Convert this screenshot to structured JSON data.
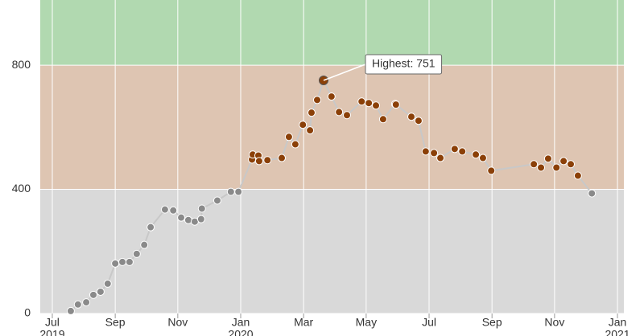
{
  "chart_data": {
    "type": "line",
    "xlim": [
      2019.468,
      2021.017
    ],
    "ylim": [
      0,
      1010
    ],
    "yticks": [
      0,
      400,
      800
    ],
    "xticks": [
      {
        "value": 2019.5,
        "label": "Jul",
        "year": "2019"
      },
      {
        "value": 2019.667,
        "label": "Sep"
      },
      {
        "value": 2019.833,
        "label": "Nov"
      },
      {
        "value": 2020,
        "label": "Jan",
        "year": "2020"
      },
      {
        "value": 2020.167,
        "label": "Mar"
      },
      {
        "value": 2020.333,
        "label": "May"
      },
      {
        "value": 2020.5,
        "label": "Jul"
      },
      {
        "value": 2020.667,
        "label": "Sep"
      },
      {
        "value": 2020.833,
        "label": "Nov"
      },
      {
        "value": 2021,
        "label": "Jan",
        "year": "2021"
      }
    ],
    "grid": true,
    "line_color": "#c8c8c8",
    "bands": [
      {
        "from": 0,
        "to": 400,
        "color": "#d9d9d9",
        "marker_color": "#8a8a8a"
      },
      {
        "from": 400,
        "to": 800,
        "color": "#dec5b2",
        "marker_color": "#8b4008"
      },
      {
        "from": 800,
        "color": "#b1d9b0"
      }
    ],
    "series": [
      {
        "x": [
          2019.549,
          2019.568,
          2019.59,
          2019.609,
          2019.628,
          2019.647,
          2019.667,
          2019.686,
          2019.705,
          2019.724,
          2019.744,
          2019.761,
          2019.799,
          2019.821,
          2019.842,
          2019.861,
          2019.878,
          2019.895,
          2019.897,
          2019.938,
          2019.974,
          2019.994,
          2020.03,
          2020.032,
          2020.047,
          2020.049,
          2020.071,
          2020.109,
          2020.128,
          2020.145,
          2020.165,
          2020.184,
          2020.188,
          2020.203,
          2020.22,
          2020.241,
          2020.261,
          2020.282,
          2020.321,
          2020.34,
          2020.359,
          2020.378,
          2020.41,
          2020.412,
          2020.453,
          2020.472,
          2020.491,
          2020.513,
          2020.53,
          2020.568,
          2020.588,
          2020.624,
          2020.643,
          2020.665,
          2020.778,
          2020.797,
          2020.816,
          2020.838,
          2020.857,
          2020.876,
          2020.895,
          2020.932
        ],
        "values": [
          8,
          29,
          36,
          60,
          70,
          96,
          161,
          166,
          166,
          192,
          221,
          278,
          335,
          332,
          309,
          301,
          296,
          304,
          338,
          364,
          392,
          392,
          496,
          512,
          509,
          491,
          494,
          501,
          569,
          545,
          608,
          590,
          647,
          688,
          751,
          699,
          649,
          639,
          683,
          678,
          670,
          626,
          675,
          673,
          634,
          621,
          522,
          517,
          501,
          530,
          522,
          512,
          501,
          460,
          481,
          470,
          499,
          470,
          491,
          481,
          444,
          387
        ]
      }
    ],
    "annotations": [
      {
        "text": "Highest: 751",
        "point": 34
      }
    ]
  }
}
